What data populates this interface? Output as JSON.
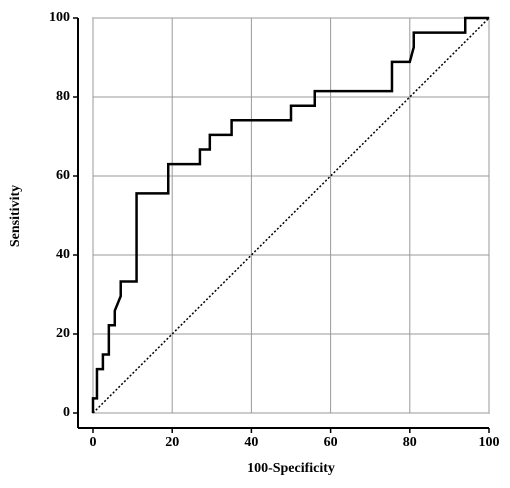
{
  "chart_data": {
    "type": "line",
    "x_label": "100-Specificity",
    "y_label": "Sensitivity",
    "xlim": [
      0,
      100
    ],
    "ylim": [
      0,
      100
    ],
    "xticks": [
      0,
      20,
      40,
      60,
      80,
      100
    ],
    "yticks": [
      0,
      20,
      40,
      60,
      80,
      100
    ],
    "grid": true,
    "series": [
      {
        "color": "#000000",
        "style": "solid",
        "x": [
          0,
          0,
          1,
          1,
          2.5,
          2.5,
          4,
          4,
          5.5,
          5.5,
          7,
          7,
          11,
          11,
          19,
          19,
          27,
          27,
          29.5,
          29.5,
          35,
          35,
          50,
          50,
          56,
          56,
          75.5,
          75.5,
          80,
          81,
          81,
          94,
          94,
          100
        ],
        "values": [
          0,
          3.7,
          3.7,
          11.1,
          11.1,
          14.8,
          14.8,
          22.2,
          22.2,
          25.9,
          29.6,
          33.3,
          33.3,
          55.6,
          55.6,
          63,
          63,
          66.7,
          66.7,
          70.4,
          70.4,
          74.1,
          74.1,
          77.8,
          77.8,
          81.5,
          81.5,
          88.9,
          88.9,
          92.6,
          96.3,
          96.3,
          100,
          100
        ]
      },
      {
        "color": "#000000",
        "style": "dotted",
        "x": [
          0,
          100
        ],
        "values": [
          0,
          100
        ]
      }
    ]
  }
}
